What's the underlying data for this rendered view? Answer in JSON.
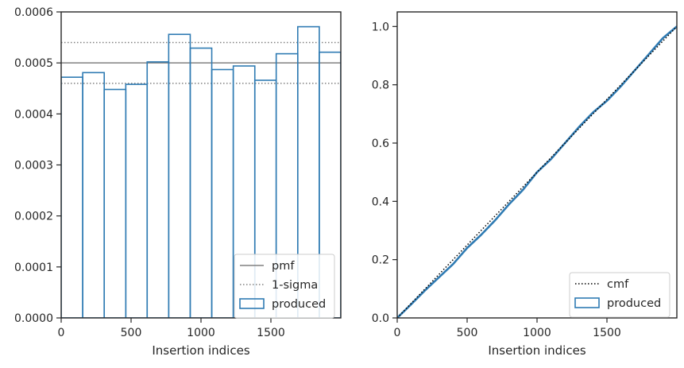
{
  "colors": {
    "hist": "#2f7bb3",
    "pmf": "#808080",
    "sigma": "#808080",
    "cmf": "#000000",
    "cdf": "#2f7bb3",
    "axis": "#262626",
    "legend_border": "#cccccc"
  },
  "chart_data": [
    {
      "type": "step",
      "xlabel": "Insertion indices",
      "ylabel": "",
      "xlim": [
        0,
        2000
      ],
      "ylim": [
        0,
        0.0006
      ],
      "xticks": [
        0,
        500,
        1000,
        1500
      ],
      "xtick_labels": [
        "0",
        "500",
        "1000",
        "1500"
      ],
      "yticks": [
        0,
        0.0001,
        0.0002,
        0.0003,
        0.0004,
        0.0005,
        0.0006
      ],
      "ytick_labels": [
        "0.0000",
        "0.0001",
        "0.0002",
        "0.0003",
        "0.0004",
        "0.0005",
        "0.0006"
      ],
      "pmf": 0.0005,
      "sigma_band": [
        0.00046,
        0.00054
      ],
      "bin_edges": [
        0,
        154,
        308,
        462,
        615,
        769,
        923,
        1077,
        1231,
        1385,
        1538,
        1692,
        1846,
        2000
      ],
      "bin_values": [
        0.000472,
        0.000481,
        0.000448,
        0.000458,
        0.000502,
        0.000556,
        0.000529,
        0.000487,
        0.000494,
        0.000466,
        0.000518,
        0.000571,
        0.000521
      ],
      "legend": [
        {
          "label": "pmf",
          "style": "solid"
        },
        {
          "label": "1-sigma",
          "style": "dotted"
        },
        {
          "label": "produced",
          "style": "patch"
        }
      ],
      "legend_position": "lower-right"
    },
    {
      "type": "line",
      "xlabel": "Insertion indices",
      "ylabel": "",
      "xlim": [
        0,
        2000
      ],
      "ylim": [
        0,
        1.05
      ],
      "xticks": [
        0,
        500,
        1000,
        1500
      ],
      "xtick_labels": [
        "0",
        "500",
        "1000",
        "1500"
      ],
      "yticks": [
        0,
        0.2,
        0.4,
        0.6,
        0.8,
        1.0
      ],
      "ytick_labels": [
        "0.0",
        "0.2",
        "0.4",
        "0.6",
        "0.8",
        "1.0"
      ],
      "cmf": {
        "x": [
          0,
          2000
        ],
        "y": [
          0,
          1
        ]
      },
      "produced": {
        "x": [
          0,
          100,
          200,
          300,
          400,
          500,
          600,
          700,
          800,
          900,
          1000,
          1100,
          1200,
          1300,
          1400,
          1500,
          1600,
          1700,
          1800,
          1900,
          2000
        ],
        "y": [
          0,
          0.047,
          0.095,
          0.14,
          0.185,
          0.24,
          0.285,
          0.335,
          0.39,
          0.44,
          0.5,
          0.545,
          0.6,
          0.655,
          0.705,
          0.745,
          0.795,
          0.85,
          0.905,
          0.96,
          1.0
        ]
      },
      "legend": [
        {
          "label": "cmf",
          "style": "dotted"
        },
        {
          "label": "produced",
          "style": "patch"
        }
      ],
      "legend_position": "lower-right"
    }
  ]
}
